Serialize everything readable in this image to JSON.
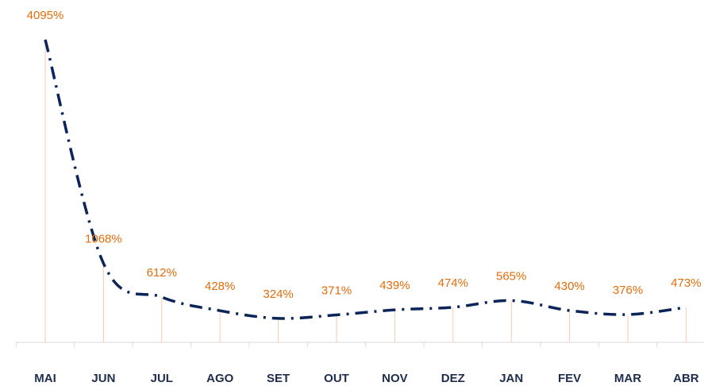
{
  "chart_data": {
    "type": "line",
    "categories": [
      "MAI",
      "JUN",
      "JUL",
      "AGO",
      "SET",
      "OUT",
      "NOV",
      "DEZ",
      "JAN",
      "FEV",
      "MAR",
      "ABR"
    ],
    "values": [
      4095,
      1068,
      612,
      428,
      324,
      371,
      439,
      474,
      565,
      430,
      376,
      473
    ],
    "value_labels": [
      "4095%",
      "1068%",
      "612%",
      "428%",
      "324%",
      "371%",
      "439%",
      "474%",
      "565%",
      "430%",
      "376%",
      "473%"
    ],
    "color": "#0b2559",
    "label_color": "#e46c0a",
    "drop_line_color": "#f8cbad",
    "ylim": [
      0,
      4100
    ],
    "grid": false
  }
}
